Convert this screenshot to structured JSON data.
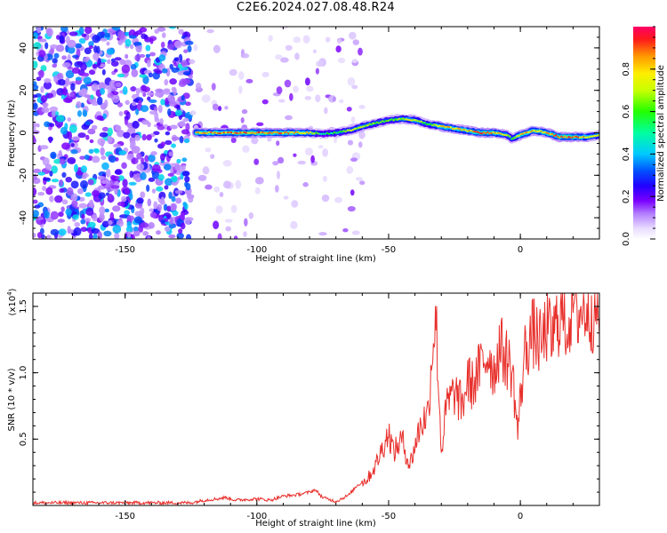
{
  "figure": {
    "title": "C2E6.2024.027.08.48.R24"
  },
  "colors": {
    "snr_line": "#e8302c",
    "axis": "#000000",
    "colormap": [
      "#ffffff",
      "#e8dcff",
      "#c8a2ff",
      "#9b4dff",
      "#7a00ff",
      "#3a00ff",
      "#0044ff",
      "#00c8ff",
      "#00ff8a",
      "#2cff00",
      "#c8ff00",
      "#ffee00",
      "#ff9900",
      "#ff1a1a",
      "#ff0066"
    ]
  },
  "chart_data": [
    {
      "type": "heatmap",
      "title": "C2E6.2024.027.08.48.R24",
      "xlabel": "Height of straight line (km)",
      "ylabel": "Frequency (Hz)",
      "xlim": [
        -185,
        30
      ],
      "ylim": [
        -50,
        50
      ],
      "x_ticks": [
        -150,
        -100,
        -50,
        0
      ],
      "x_tick_labels": [
        "-150",
        "-100",
        "-50",
        "0"
      ],
      "y_ticks": [
        -40,
        -20,
        0,
        20,
        40
      ],
      "y_tick_labels": [
        "-40",
        "-20",
        "0",
        "20",
        "40"
      ],
      "colorbar": {
        "label": "Normalized spectral amplitude",
        "range": [
          0,
          1
        ],
        "ticks": [
          0.0,
          0.2,
          0.4,
          0.6,
          0.8
        ],
        "tick_labels": [
          "0.0",
          "0.2",
          "0.4",
          "0.6",
          "0.8"
        ],
        "colormap": "rainbow"
      },
      "regions": [
        {
          "description": "noise",
          "x_range": [
            -185,
            -125
          ],
          "amplitude_range": [
            0.1,
            0.45
          ]
        },
        {
          "description": "sparse noise",
          "x_range": [
            -125,
            -60
          ],
          "amplitude_range": [
            0.05,
            0.2
          ]
        }
      ],
      "ridge": {
        "x": [
          -123,
          -110,
          -100,
          -90,
          -80,
          -75,
          -70,
          -65,
          -60,
          -55,
          -50,
          -45,
          -40,
          -35,
          -30,
          -25,
          -20,
          -15,
          -10,
          -5,
          -3,
          0,
          5,
          10,
          15,
          20,
          25,
          30
        ],
        "frequency": [
          0,
          0,
          0,
          0,
          0,
          -0.5,
          0,
          1,
          3,
          4.5,
          6,
          6.5,
          6,
          4,
          3,
          2,
          1,
          0,
          0,
          -1,
          -3,
          -1,
          1,
          0,
          -2,
          -2,
          -2,
          -1
        ],
        "amplitude": [
          0.85,
          0.85,
          0.9,
          0.85,
          0.8,
          0.5,
          0.6,
          0.65,
          0.7,
          0.65,
          0.6,
          0.7,
          0.75,
          0.6,
          0.85,
          0.8,
          0.8,
          0.9,
          0.85,
          0.7,
          0.6,
          0.85,
          0.8,
          0.85,
          0.9,
          0.9,
          0.8,
          0.7
        ]
      }
    },
    {
      "type": "line",
      "title": "",
      "xlabel": "Height of straight line (km)",
      "ylabel": "SNR (10 * v/v)",
      "y_multiplier": "(x10",
      "y_multiplier_exp": "4",
      "xlim": [
        -185,
        30
      ],
      "ylim": [
        0,
        1.6
      ],
      "x_ticks": [
        -150,
        -100,
        -50,
        0
      ],
      "x_tick_labels": [
        "-150",
        "-100",
        "-50",
        "0"
      ],
      "y_ticks": [
        0.5,
        1.0,
        1.5
      ],
      "y_tick_labels": [
        "0.5",
        "1.0",
        "1.5"
      ],
      "series": [
        {
          "x": [
            -185,
            -175,
            -165,
            -155,
            -145,
            -135,
            -125,
            -120,
            -115,
            -112,
            -108,
            -100,
            -95,
            -90,
            -85,
            -80,
            -78,
            -75,
            -70,
            -65,
            -62,
            -58,
            -55,
            -52,
            -50,
            -48,
            -45,
            -42,
            -40,
            -38,
            -35,
            -33,
            -32,
            -31,
            -30,
            -28,
            -25,
            -22,
            -20,
            -18,
            -15,
            -12,
            -10,
            -8,
            -5,
            -3,
            -1,
            0,
            2,
            5,
            8,
            10,
            12,
            15,
            18,
            20,
            22,
            25,
            28,
            30
          ],
          "y": [
            0.02,
            0.02,
            0.02,
            0.02,
            0.02,
            0.02,
            0.02,
            0.04,
            0.05,
            0.06,
            0.04,
            0.05,
            0.04,
            0.07,
            0.08,
            0.1,
            0.12,
            0.06,
            0.03,
            0.08,
            0.15,
            0.2,
            0.3,
            0.45,
            0.55,
            0.4,
            0.5,
            0.3,
            0.45,
            0.6,
            0.7,
            1.3,
            1.4,
            0.9,
            0.4,
            0.75,
            0.85,
            0.75,
            0.95,
            0.9,
            1.05,
            1.15,
            1.0,
            1.2,
            1.1,
            1.0,
            0.55,
            0.8,
            1.2,
            1.3,
            1.2,
            1.35,
            1.25,
            1.45,
            1.35,
            1.55,
            1.45,
            1.5,
            1.45,
            1.48
          ]
        }
      ]
    }
  ]
}
